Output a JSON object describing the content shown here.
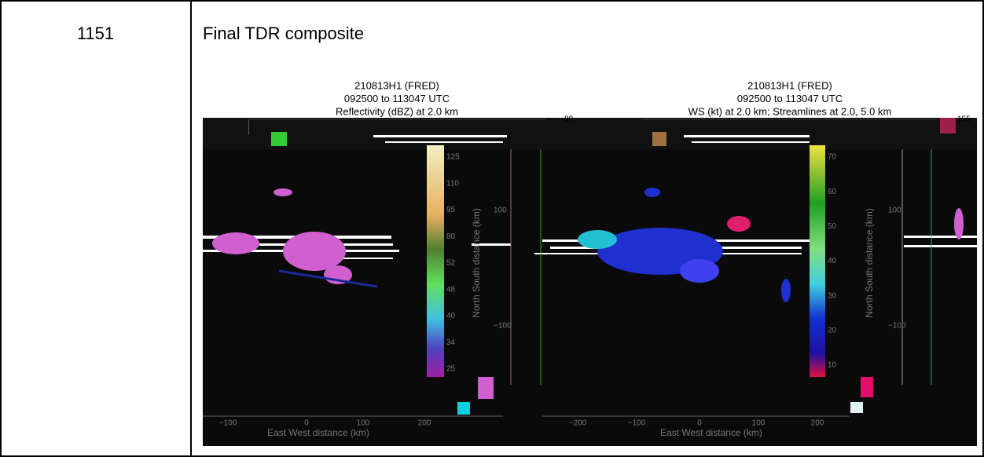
{
  "row": {
    "id": "1151",
    "title": "Final TDR composite"
  },
  "figure": {
    "panels": [
      {
        "title_lines": [
          "210813H1 (FRED)",
          "092500 to 113047 UTC",
          "Reflectivity (dBZ) at 2.0 km"
        ],
        "max_label": "80",
        "colorbar_ticks": [
          "125",
          "110",
          "95",
          "80",
          "52",
          "48",
          "40",
          "34",
          "25"
        ],
        "y_ticks": [
          "100",
          "−100"
        ],
        "x_ticks": [
          "−100",
          "0",
          "100",
          "200"
        ],
        "x_label": "East West distance (km)",
        "y_label": "North South distance (km)"
      },
      {
        "title_lines": [
          "210813H1 (FRED)",
          "092500 to 113047 UTC",
          "WS (kt) at 2.0 km; Streamlines at 2.0, 5.0 km"
        ],
        "max_label": "155",
        "colorbar_ticks": [
          "70",
          "60",
          "50",
          "40",
          "30",
          "20",
          "10"
        ],
        "y_ticks": [
          "100",
          "−100"
        ],
        "x_ticks": [
          "−200",
          "−100",
          "0",
          "100",
          "200"
        ],
        "x_label": "East West distance (km)",
        "y_label": "North South distance (km)"
      }
    ]
  }
}
